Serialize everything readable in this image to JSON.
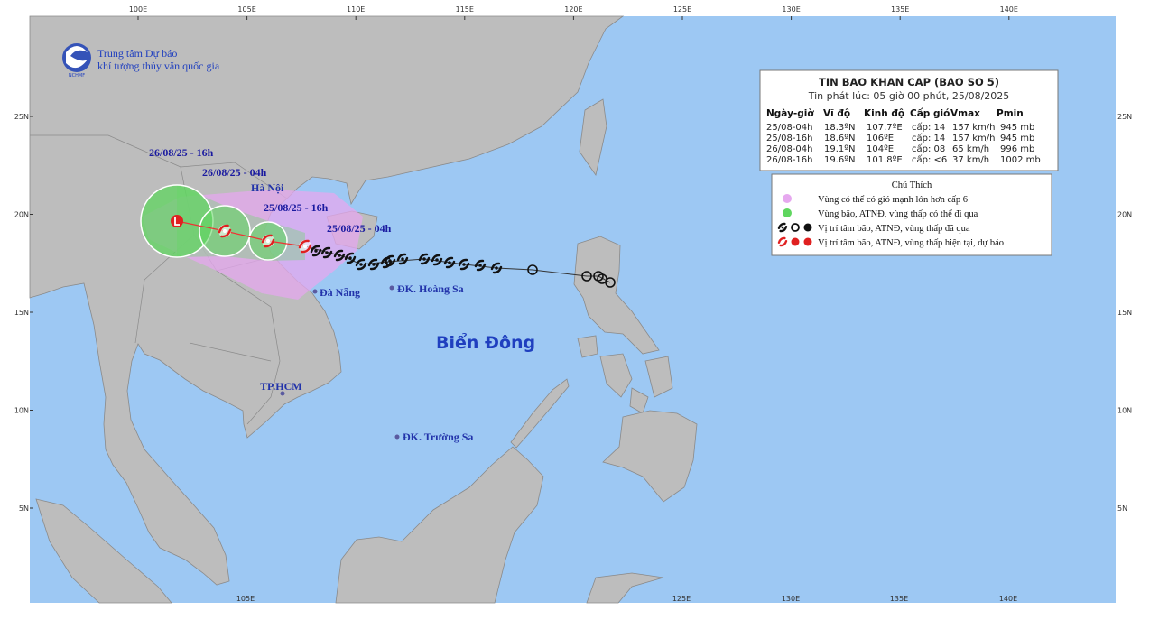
{
  "header": {
    "org_line1": "Trung tâm Dự báo",
    "org_line2": "khí tượng thủy văn quốc gia",
    "logo_text": "NCHMF"
  },
  "axes": {
    "top_lon_labels": [
      "100E",
      "105E",
      "110E",
      "115E",
      "120E",
      "125E",
      "130E",
      "135E",
      "140E"
    ],
    "bottom_lon_labels": [
      "105E",
      "125E",
      "130E",
      "135E",
      "140E"
    ],
    "lat_labels": [
      "25N",
      "20N",
      "15N",
      "10N",
      "5N"
    ]
  },
  "bulletin": {
    "title": "TIN BAO KHAN CAP (BAO SO 5)",
    "issued": "Tin phát lúc: 05 giờ 00 phút, 25/08/2025",
    "columns": [
      "Ngày-giờ",
      "Vĩ độ",
      "Kinh độ",
      "Cấp gió",
      "Vmax",
      "Pmin"
    ],
    "rows": [
      [
        "25/08-04h",
        "18.3ºN",
        "107.7ºE",
        "cấp: 14",
        "157 km/h",
        "945 mb"
      ],
      [
        "25/08-16h",
        "18.6ºN",
        "106ºE",
        "cấp: 14",
        "157 km/h",
        "945 mb"
      ],
      [
        "26/08-04h",
        "19.1ºN",
        "104ºE",
        "cấp: 08",
        "65 km/h",
        "996 mb"
      ],
      [
        "26/08-16h",
        "19.6ºN",
        "101.8ºE",
        "cấp: <6",
        "37 km/h",
        "1002 mb"
      ]
    ]
  },
  "legend": {
    "title": "Chú Thích",
    "items": [
      "Vùng có thể có gió mạnh lớn hơn cấp 6",
      "Vùng bão, ATNĐ, vùng thấp có thể đi qua",
      "Vị trí tâm bão, ATNĐ, vùng thấp đã qua",
      "Vị trí tâm bão, ATNĐ, vùng thấp hiện tại, dự báo"
    ]
  },
  "map_labels": {
    "ha_noi": "Hà Nội",
    "da_nang": "Đà Nẵng",
    "hoang_sa": "ĐK. Hoàng Sa",
    "tp_hcm": "TP.HCM",
    "truong_sa": "ĐK. Trường Sa",
    "sea": "Biển Đông"
  },
  "track_labels": [
    "26/08/25 - 16h",
    "26/08/25 - 04h",
    "25/08/25 - 16h",
    "25/08/25 - 04h"
  ]
}
